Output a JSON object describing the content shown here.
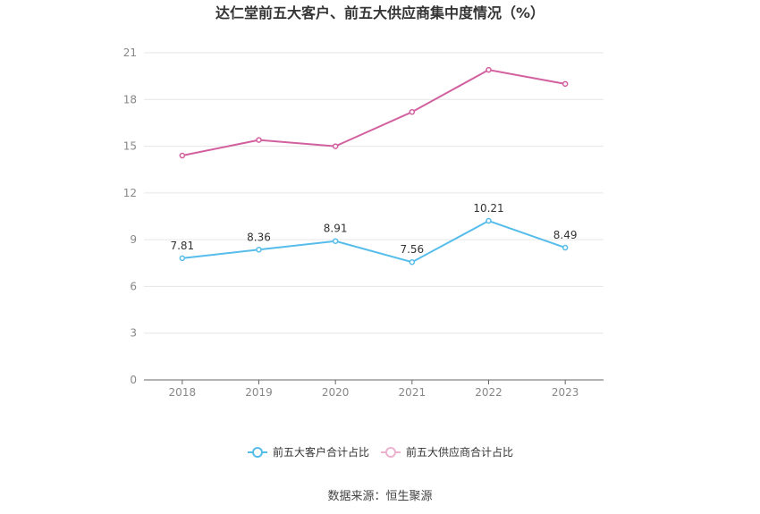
{
  "chart_data": {
    "type": "line",
    "title": "达仁堂前五大客户、前五大供应商集中度情况（%）",
    "categories": [
      "2018",
      "2019",
      "2020",
      "2021",
      "2022",
      "2023"
    ],
    "ylim": [
      0,
      21
    ],
    "yticks": [
      0,
      3,
      6,
      9,
      12,
      15,
      18,
      21
    ],
    "grid": true,
    "legend_position": "bottom",
    "series": [
      {
        "name": "前五大客户合计占比",
        "color": "#56BDEB",
        "values": [
          7.81,
          8.36,
          8.91,
          7.56,
          10.21,
          8.49
        ],
        "data_labels": [
          "7.81",
          "8.36",
          "8.91",
          "7.56",
          "10.21",
          "8.49"
        ]
      },
      {
        "name": "前五大供应商合计占比",
        "color": "#D2609F",
        "values": [
          14.4,
          15.4,
          15.0,
          17.2,
          19.9,
          19.0
        ],
        "data_labels": []
      }
    ]
  },
  "legend": {
    "customers": "前五大客户合计占比",
    "suppliers": "前五大供应商合计占比",
    "customers_marker_color": "#56BDEB",
    "suppliers_marker_color": "#EBB1CF"
  },
  "source": "数据来源：恒生聚源"
}
